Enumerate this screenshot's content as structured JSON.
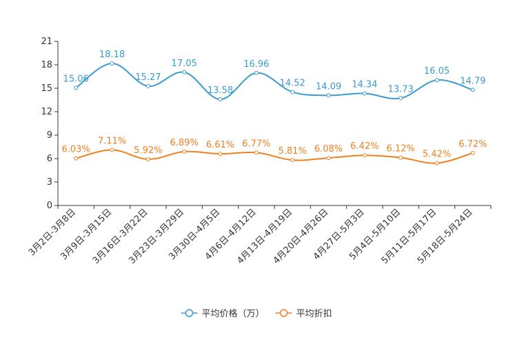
{
  "chart_data": {
    "type": "line",
    "title": "",
    "xlabel": "",
    "ylabel": "",
    "ylim": [
      0,
      21
    ],
    "yticks": [
      0,
      3,
      6,
      9,
      12,
      15,
      18,
      21
    ],
    "grid": false,
    "legend_position": "bottom-center",
    "categories": [
      "3月2日-3月8日",
      "3月9日-3月15日",
      "3月16日-3月22日",
      "3月23日-3月29日",
      "3月30日-4月5日",
      "4月6日-4月12日",
      "4月13日-4月19日",
      "4月20日-4月26日",
      "4月27日-5月3日",
      "5月4日-5月10日",
      "5月11日-5月17日",
      "5月18日-5月24日"
    ],
    "series": [
      {
        "name": "平均价格（万）",
        "color": "#3a9bd1",
        "values": [
          15.06,
          18.18,
          15.27,
          17.05,
          13.58,
          16.96,
          14.52,
          14.09,
          14.34,
          13.73,
          16.05,
          14.79
        ],
        "labels": [
          "15.06",
          "18.18",
          "15.27",
          "17.05",
          "13.58",
          "16.96",
          "14.52",
          "14.09",
          "14.34",
          "13.73",
          "16.05",
          "14.79"
        ]
      },
      {
        "name": "平均折扣",
        "color": "#f07f1e",
        "values": [
          6.03,
          7.11,
          5.92,
          6.89,
          6.61,
          6.77,
          5.81,
          6.08,
          6.42,
          6.12,
          5.42,
          6.72
        ],
        "labels": [
          "6.03%",
          "7.11%",
          "5.92%",
          "6.89%",
          "6.61%",
          "6.77%",
          "5.81%",
          "6.08%",
          "6.42%",
          "6.12%",
          "5.42%",
          "6.72%"
        ]
      }
    ]
  }
}
